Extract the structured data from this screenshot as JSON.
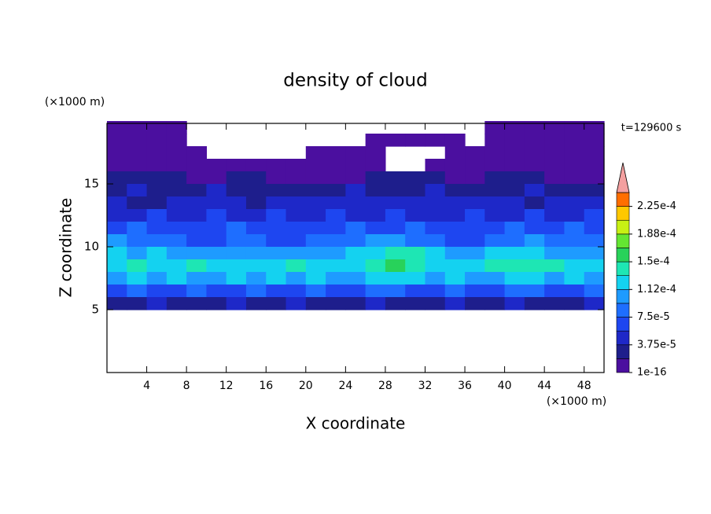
{
  "chart_data": {
    "type": "contour",
    "title": "density of cloud",
    "xlabel": "X coordinate",
    "ylabel": "Z coordinate",
    "xunit": "(×1000 m)",
    "yunit": "(×1000 m)",
    "annotation": "t=129600 s",
    "xlim": [
      0,
      50
    ],
    "ylim": [
      0,
      20
    ],
    "xticks": [
      4,
      8,
      12,
      16,
      20,
      24,
      28,
      32,
      36,
      40,
      44,
      48
    ],
    "yticks": [
      5,
      10,
      15
    ],
    "x": [
      1,
      3,
      5,
      7,
      9,
      11,
      13,
      15,
      17,
      19,
      21,
      23,
      25,
      27,
      29,
      31,
      33,
      35,
      37,
      39,
      41,
      43,
      45,
      47,
      49
    ],
    "y": [
      19.5,
      18.5,
      17.5,
      16.5,
      15.5,
      14.5,
      13.5,
      12.5,
      11.5,
      10.5,
      9.5,
      8.5,
      7.5,
      6.5,
      5.5
    ],
    "z": [
      [
        5e-06,
        5e-06,
        5e-06,
        5e-06,
        null,
        null,
        null,
        null,
        null,
        null,
        null,
        null,
        null,
        null,
        null,
        null,
        null,
        null,
        null,
        5e-06,
        5e-06,
        5e-06,
        5e-06,
        5e-06,
        5e-06
      ],
      [
        5e-06,
        5e-06,
        5e-06,
        5e-06,
        null,
        null,
        null,
        null,
        null,
        null,
        null,
        null,
        null,
        5e-06,
        5e-06,
        5e-06,
        5e-06,
        5e-06,
        null,
        5e-06,
        5e-06,
        5e-06,
        5e-06,
        5e-06,
        5e-06
      ],
      [
        5e-06,
        5e-06,
        5e-06,
        5e-06,
        5e-06,
        null,
        null,
        null,
        null,
        null,
        5e-06,
        5e-06,
        5e-06,
        5e-06,
        null,
        null,
        null,
        5e-06,
        5e-06,
        5e-06,
        5e-06,
        5e-06,
        5e-06,
        5e-06,
        5e-06
      ],
      [
        5e-06,
        5e-06,
        5e-06,
        5e-06,
        5e-06,
        5e-06,
        5e-06,
        5e-06,
        5e-06,
        5e-06,
        5e-06,
        5e-06,
        5e-06,
        5e-06,
        null,
        null,
        5e-06,
        5e-06,
        5e-06,
        5e-06,
        5e-06,
        5e-06,
        5e-06,
        5e-06,
        5e-06
      ],
      [
        2.8e-05,
        2.8e-05,
        2.8e-05,
        2.8e-05,
        5e-06,
        5e-06,
        2.8e-05,
        2.8e-05,
        5e-06,
        5e-06,
        5e-06,
        5e-06,
        5e-06,
        2.8e-05,
        2.8e-05,
        2.8e-05,
        2.8e-05,
        5e-06,
        5e-06,
        2.8e-05,
        2.8e-05,
        2.8e-05,
        5e-06,
        5e-06,
        5e-06
      ],
      [
        2.8e-05,
        4.7e-05,
        2.8e-05,
        2.8e-05,
        2.8e-05,
        4.7e-05,
        2.8e-05,
        2.8e-05,
        2.8e-05,
        2.8e-05,
        2.8e-05,
        2.8e-05,
        4.7e-05,
        2.8e-05,
        2.8e-05,
        2.8e-05,
        4.7e-05,
        2.8e-05,
        2.8e-05,
        2.8e-05,
        2.8e-05,
        4.7e-05,
        2.8e-05,
        2.8e-05,
        2.8e-05
      ],
      [
        4.7e-05,
        2.8e-05,
        2.8e-05,
        4.7e-05,
        4.7e-05,
        4.7e-05,
        4.7e-05,
        2.8e-05,
        4.7e-05,
        4.7e-05,
        4.7e-05,
        4.7e-05,
        4.7e-05,
        4.7e-05,
        4.7e-05,
        4.7e-05,
        4.7e-05,
        4.7e-05,
        4.7e-05,
        4.7e-05,
        4.7e-05,
        2.8e-05,
        4.7e-05,
        4.7e-05,
        4.7e-05
      ],
      [
        4.7e-05,
        4.7e-05,
        6.5e-05,
        4.7e-05,
        4.7e-05,
        6.5e-05,
        4.7e-05,
        4.7e-05,
        6.5e-05,
        4.7e-05,
        4.7e-05,
        6.5e-05,
        4.7e-05,
        4.7e-05,
        6.5e-05,
        4.7e-05,
        4.7e-05,
        4.7e-05,
        6.5e-05,
        4.7e-05,
        4.7e-05,
        6.5e-05,
        4.7e-05,
        4.7e-05,
        6.5e-05
      ],
      [
        6.5e-05,
        8.4e-05,
        6.5e-05,
        6.5e-05,
        6.5e-05,
        6.5e-05,
        8.4e-05,
        6.5e-05,
        6.5e-05,
        6.5e-05,
        6.5e-05,
        6.5e-05,
        8.4e-05,
        6.5e-05,
        6.5e-05,
        8.4e-05,
        6.5e-05,
        6.5e-05,
        6.5e-05,
        6.5e-05,
        8.4e-05,
        6.5e-05,
        6.5e-05,
        8.4e-05,
        6.5e-05
      ],
      [
        0.000103,
        8.4e-05,
        8.4e-05,
        8.4e-05,
        6.5e-05,
        6.5e-05,
        8.4e-05,
        8.4e-05,
        6.5e-05,
        6.5e-05,
        8.4e-05,
        8.4e-05,
        8.4e-05,
        0.000103,
        0.000103,
        8.4e-05,
        8.4e-05,
        6.5e-05,
        6.5e-05,
        8.4e-05,
        8.4e-05,
        0.000103,
        8.4e-05,
        8.4e-05,
        8.4e-05
      ],
      [
        0.000122,
        0.000103,
        0.000122,
        0.000103,
        0.000103,
        0.000103,
        0.000103,
        0.000103,
        0.000103,
        0.000103,
        0.000103,
        0.000103,
        0.000122,
        0.000122,
        0.00014,
        0.00014,
        0.000122,
        0.000103,
        0.000103,
        0.000122,
        0.000122,
        0.000122,
        0.000103,
        0.000103,
        0.000103
      ],
      [
        0.000122,
        0.00014,
        0.000122,
        0.000122,
        0.00014,
        0.000122,
        0.000122,
        0.000122,
        0.000122,
        0.00014,
        0.000122,
        0.000122,
        0.000122,
        0.00014,
        0.000159,
        0.00014,
        0.000122,
        0.000122,
        0.000122,
        0.00014,
        0.00014,
        0.00014,
        0.00014,
        0.000122,
        0.000122
      ],
      [
        0.000103,
        0.000122,
        0.000103,
        0.000122,
        0.000103,
        0.000103,
        0.000122,
        0.000103,
        0.000122,
        0.000103,
        0.000122,
        0.000103,
        0.000103,
        0.000122,
        0.000122,
        0.000122,
        0.000103,
        0.000122,
        0.000103,
        0.000103,
        0.000122,
        0.000122,
        0.000103,
        0.000122,
        0.000103
      ],
      [
        6.5e-05,
        8.4e-05,
        6.5e-05,
        6.5e-05,
        8.4e-05,
        6.5e-05,
        6.5e-05,
        8.4e-05,
        6.5e-05,
        6.5e-05,
        8.4e-05,
        6.5e-05,
        6.5e-05,
        8.4e-05,
        8.4e-05,
        6.5e-05,
        6.5e-05,
        8.4e-05,
        6.5e-05,
        6.5e-05,
        8.4e-05,
        8.4e-05,
        6.5e-05,
        6.5e-05,
        8.4e-05
      ],
      [
        2.8e-05,
        2.8e-05,
        4.7e-05,
        2.8e-05,
        2.8e-05,
        2.8e-05,
        4.7e-05,
        2.8e-05,
        2.8e-05,
        4.7e-05,
        2.8e-05,
        2.8e-05,
        2.8e-05,
        4.7e-05,
        2.8e-05,
        2.8e-05,
        2.8e-05,
        4.7e-05,
        2.8e-05,
        2.8e-05,
        4.7e-05,
        2.8e-05,
        2.8e-05,
        2.8e-05,
        4.7e-05
      ]
    ],
    "levels": [
      1e-16,
      1.875e-05,
      3.75e-05,
      5.625e-05,
      7.5e-05,
      9.375e-05,
      0.0001125,
      0.00013125,
      0.00015,
      0.00016875,
      0.0001875,
      0.00020625,
      0.000225,
      0.00024375
    ],
    "colors": [
      "#4b0f9f",
      "#1e1e8c",
      "#1e28c8",
      "#1e46f0",
      "#1e6eff",
      "#1e9bff",
      "#14d2f0",
      "#1ee6b4",
      "#28d25a",
      "#64e632",
      "#c8f014",
      "#ffc800",
      "#ff6e00"
    ],
    "extend_color": "#f4a0a0",
    "cticks": [
      {
        "value": 1e-16,
        "label": "1e-16"
      },
      {
        "value": 3.75e-05,
        "label": "3.75e-5"
      },
      {
        "value": 7.5e-05,
        "label": "7.5e-5"
      },
      {
        "value": 0.0001125,
        "label": "1.12e-4"
      },
      {
        "value": 0.00015,
        "label": "1.5e-4"
      },
      {
        "value": 0.0001875,
        "label": "1.88e-4"
      },
      {
        "value": 0.000225,
        "label": "2.25e-4"
      }
    ]
  }
}
